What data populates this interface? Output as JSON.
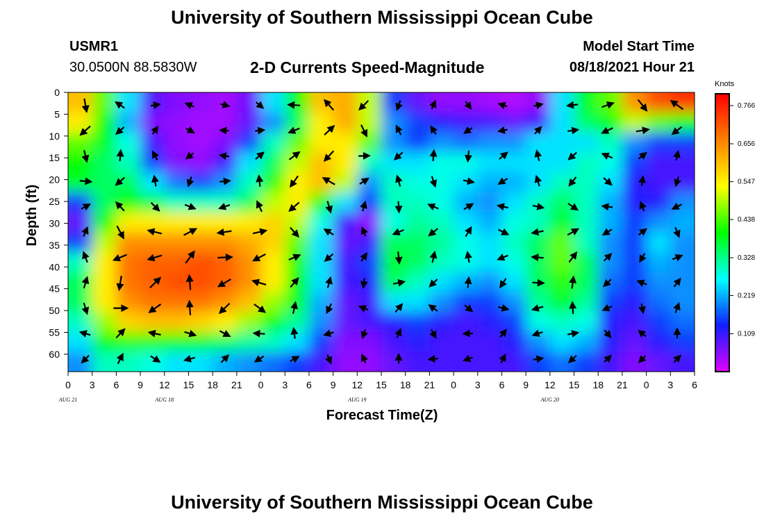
{
  "header": {
    "title": "University of Southern Mississippi Ocean Cube",
    "footer_title": "University of Southern Mississippi Ocean Cube",
    "station_id": "USMR1",
    "location": "30.0500N  88.5830W",
    "chart_title": "2-D Currents Speed-Magnitude",
    "model_label": "Model Start Time",
    "model_start": "08/18/2021 Hour 21"
  },
  "chart_data": {
    "type": "heatmap",
    "title": "2-D Currents Speed-Magnitude",
    "xlabel": "Forecast Time(Z)",
    "ylabel": "Depth (ft)",
    "x_ticks": [
      "0",
      "3",
      "6",
      "9",
      "12",
      "15",
      "18",
      "21",
      "0",
      "3",
      "6",
      "9",
      "12",
      "15",
      "18",
      "21",
      "0",
      "3",
      "6",
      "9",
      "12",
      "15",
      "18",
      "21",
      "0",
      "3",
      "6"
    ],
    "date_labels": [
      "AUG 18",
      "AUG 19",
      "AUG 20",
      "AUG 21"
    ],
    "y_ticks": [
      "0",
      "5",
      "10",
      "15",
      "20",
      "25",
      "30",
      "35",
      "40",
      "45",
      "50",
      "55",
      "60"
    ],
    "ylim": [
      0,
      64
    ],
    "y_inverted": true,
    "colorbar": {
      "units": "Knots",
      "tick_labels": [
        "0.766",
        "0.656",
        "0.547",
        "0.438",
        "0.328",
        "0.219",
        "0.109"
      ],
      "range": [
        0,
        0.8
      ],
      "colors": [
        "#e000ff",
        "#1020ff",
        "#00ffff",
        "#00ff00",
        "#ffff00",
        "#ff8000",
        "#ff0000"
      ]
    },
    "speed_grid": [
      [
        0.6,
        0.45,
        0.25,
        0.09,
        0.06,
        0.05,
        0.04,
        0.07,
        0.25,
        0.4,
        0.6,
        0.62,
        0.5,
        0.15,
        0.08,
        0.05,
        0.05,
        0.04,
        0.03,
        0.05,
        0.25,
        0.38,
        0.45,
        0.65,
        0.72,
        0.75
      ],
      [
        0.55,
        0.4,
        0.22,
        0.06,
        0.05,
        0.04,
        0.04,
        0.08,
        0.2,
        0.35,
        0.55,
        0.62,
        0.5,
        0.2,
        0.15,
        0.12,
        0.1,
        0.1,
        0.08,
        0.1,
        0.25,
        0.35,
        0.4,
        0.5,
        0.45,
        0.4
      ],
      [
        0.45,
        0.38,
        0.28,
        0.1,
        0.05,
        0.04,
        0.06,
        0.15,
        0.3,
        0.45,
        0.55,
        0.55,
        0.45,
        0.2,
        0.15,
        0.2,
        0.18,
        0.2,
        0.2,
        0.25,
        0.25,
        0.25,
        0.3,
        0.2,
        0.15,
        0.15
      ],
      [
        0.4,
        0.35,
        0.3,
        0.15,
        0.06,
        0.05,
        0.1,
        0.25,
        0.35,
        0.5,
        0.6,
        0.55,
        0.3,
        0.25,
        0.25,
        0.28,
        0.28,
        0.25,
        0.25,
        0.25,
        0.25,
        0.3,
        0.28,
        0.15,
        0.1,
        0.1
      ],
      [
        0.38,
        0.35,
        0.35,
        0.25,
        0.18,
        0.15,
        0.2,
        0.3,
        0.42,
        0.55,
        0.6,
        0.5,
        0.2,
        0.3,
        0.28,
        0.28,
        0.25,
        0.22,
        0.22,
        0.25,
        0.3,
        0.3,
        0.25,
        0.12,
        0.1,
        0.1
      ],
      [
        0.15,
        0.35,
        0.4,
        0.35,
        0.3,
        0.3,
        0.3,
        0.35,
        0.5,
        0.55,
        0.4,
        0.25,
        0.15,
        0.3,
        0.3,
        0.28,
        0.22,
        0.2,
        0.25,
        0.3,
        0.35,
        0.3,
        0.22,
        0.12,
        0.12,
        0.2
      ],
      [
        0.08,
        0.4,
        0.55,
        0.55,
        0.55,
        0.55,
        0.55,
        0.55,
        0.58,
        0.5,
        0.28,
        0.1,
        0.05,
        0.28,
        0.32,
        0.3,
        0.25,
        0.22,
        0.28,
        0.3,
        0.38,
        0.3,
        0.22,
        0.15,
        0.2,
        0.22
      ],
      [
        0.15,
        0.5,
        0.65,
        0.65,
        0.65,
        0.65,
        0.65,
        0.62,
        0.58,
        0.45,
        0.25,
        0.08,
        0.1,
        0.35,
        0.35,
        0.32,
        0.28,
        0.25,
        0.3,
        0.35,
        0.45,
        0.3,
        0.2,
        0.15,
        0.25,
        0.2
      ],
      [
        0.3,
        0.55,
        0.68,
        0.7,
        0.7,
        0.72,
        0.7,
        0.65,
        0.55,
        0.42,
        0.25,
        0.1,
        0.15,
        0.38,
        0.35,
        0.3,
        0.28,
        0.25,
        0.28,
        0.35,
        0.45,
        0.35,
        0.2,
        0.15,
        0.22,
        0.2
      ],
      [
        0.35,
        0.55,
        0.68,
        0.7,
        0.72,
        0.72,
        0.7,
        0.65,
        0.55,
        0.4,
        0.25,
        0.1,
        0.12,
        0.35,
        0.3,
        0.25,
        0.22,
        0.2,
        0.25,
        0.35,
        0.42,
        0.35,
        0.18,
        0.15,
        0.2,
        0.2
      ],
      [
        0.35,
        0.55,
        0.65,
        0.68,
        0.68,
        0.68,
        0.65,
        0.6,
        0.48,
        0.38,
        0.22,
        0.08,
        0.1,
        0.25,
        0.25,
        0.2,
        0.15,
        0.15,
        0.2,
        0.32,
        0.38,
        0.32,
        0.15,
        0.12,
        0.18,
        0.2
      ],
      [
        0.3,
        0.48,
        0.58,
        0.6,
        0.6,
        0.58,
        0.55,
        0.48,
        0.4,
        0.32,
        0.2,
        0.08,
        0.1,
        0.12,
        0.15,
        0.12,
        0.1,
        0.12,
        0.15,
        0.28,
        0.3,
        0.28,
        0.12,
        0.1,
        0.15,
        0.18
      ],
      [
        0.25,
        0.4,
        0.42,
        0.42,
        0.4,
        0.38,
        0.35,
        0.32,
        0.3,
        0.25,
        0.15,
        0.06,
        0.06,
        0.1,
        0.12,
        0.1,
        0.1,
        0.1,
        0.12,
        0.2,
        0.25,
        0.22,
        0.12,
        0.08,
        0.12,
        0.15
      ],
      [
        0.2,
        0.3,
        0.3,
        0.28,
        0.25,
        0.25,
        0.22,
        0.2,
        0.18,
        0.15,
        0.1,
        0.05,
        0.05,
        0.08,
        0.1,
        0.1,
        0.1,
        0.1,
        0.1,
        0.15,
        0.18,
        0.15,
        0.1,
        0.06,
        0.08,
        0.1
      ]
    ]
  }
}
